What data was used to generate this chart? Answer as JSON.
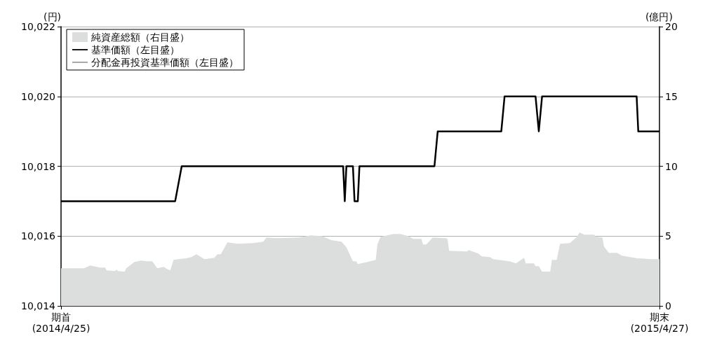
{
  "chart_data": {
    "type": "line",
    "ylabel": "(円)",
    "y2label": "(億円)",
    "xlim": [
      "2014-04-25",
      "2015-04-27"
    ],
    "xticks": [
      {
        "value": "2014-04-25",
        "label": "期首\n(2014/4/25)"
      },
      {
        "value": "2015-04-27",
        "label": "期末\n(2015/4/27)"
      }
    ],
    "ylim": [
      10014,
      10022
    ],
    "yticks": [
      {
        "value": 10014,
        "label": "10,014"
      },
      {
        "value": 10016,
        "label": "10,016"
      },
      {
        "value": 10018,
        "label": "10,018"
      },
      {
        "value": 10020,
        "label": "10,020"
      },
      {
        "value": 10022,
        "label": "10,022"
      }
    ],
    "y2lim": [
      0,
      20
    ],
    "y2ticks": [
      0,
      5,
      10,
      15,
      20
    ],
    "grid": "y",
    "legend": "top left",
    "marker": "none",
    "series": [
      {
        "name": "純資産総額（右目盛）",
        "type": "area",
        "axis": "y2",
        "color": "#dcdddd",
        "x": [
          "2014-04-25",
          "2014-05-09",
          "2014-05-13",
          "2014-05-19",
          "2014-05-22",
          "2014-05-23",
          "2014-05-28",
          "2014-05-29",
          "2014-05-30",
          "2014-06-03",
          "2014-06-04",
          "2014-06-09",
          "2014-06-13",
          "2014-06-17",
          "2014-06-20",
          "2014-06-23",
          "2014-06-27",
          "2014-06-29",
          "2014-07-01",
          "2014-07-03",
          "2014-07-10",
          "2014-07-14",
          "2014-07-17",
          "2014-07-22",
          "2014-07-28",
          "2014-07-30",
          "2014-08-01",
          "2014-08-05",
          "2014-08-11",
          "2014-08-21",
          "2014-08-27",
          "2014-08-29",
          "2014-09-04",
          "2014-09-18",
          "2014-09-25",
          "2014-10-02",
          "2014-10-08",
          "2014-10-14",
          "2014-10-17",
          "2014-10-21",
          "2014-10-23",
          "2014-10-24",
          "2014-10-30",
          "2014-11-04",
          "2014-11-05",
          "2014-11-07",
          "2014-11-15",
          "2014-11-19",
          "2014-11-24",
          "2014-11-27",
          "2014-12-02",
          "2014-12-03",
          "2014-12-05",
          "2014-12-09",
          "2014-12-17",
          "2014-12-18",
          "2014-12-19",
          "2014-12-30",
          "2014-12-31",
          "2015-01-06",
          "2015-01-08",
          "2015-01-13",
          "2015-01-15",
          "2015-01-25",
          "2015-01-29",
          "2015-02-03",
          "2015-02-04",
          "2015-02-09",
          "2015-02-10",
          "2015-02-12",
          "2015-02-14",
          "2015-02-19",
          "2015-02-20",
          "2015-02-23",
          "2015-02-25",
          "2015-03-03",
          "2015-03-04",
          "2015-03-07",
          "2015-03-09",
          "2015-03-12",
          "2015-03-18",
          "2015-03-19",
          "2015-03-23",
          "2015-03-24",
          "2015-03-27",
          "2015-04-01",
          "2015-04-04",
          "2015-04-09",
          "2015-04-14",
          "2015-04-16",
          "2015-04-22",
          "2015-04-27"
        ],
        "values": [
          2.7,
          2.7,
          2.9,
          2.75,
          2.75,
          2.55,
          2.5,
          2.6,
          2.5,
          2.45,
          2.7,
          3.15,
          3.25,
          3.2,
          3.2,
          2.7,
          2.8,
          2.65,
          2.55,
          3.3,
          3.4,
          3.5,
          3.7,
          3.35,
          3.45,
          3.7,
          3.7,
          4.55,
          4.45,
          4.5,
          4.6,
          4.9,
          4.85,
          4.9,
          5.05,
          5.0,
          4.7,
          4.6,
          4.2,
          3.2,
          3.2,
          3.0,
          3.15,
          3.3,
          4.4,
          4.95,
          5.15,
          5.15,
          5.0,
          4.8,
          4.8,
          4.4,
          4.4,
          4.9,
          4.85,
          4.8,
          3.95,
          3.9,
          4.0,
          3.75,
          3.55,
          3.5,
          3.35,
          3.2,
          3.05,
          3.45,
          3.05,
          3.05,
          2.85,
          2.85,
          2.45,
          2.45,
          3.3,
          3.3,
          4.45,
          4.5,
          4.6,
          4.9,
          5.25,
          5.1,
          5.1,
          4.95,
          4.9,
          4.25,
          3.8,
          3.8,
          3.6,
          3.5,
          3.4,
          3.4,
          3.35,
          3.35
        ]
      },
      {
        "name": "基準価額（左目盛）",
        "type": "line",
        "color": "#000000",
        "x": [
          "2014-04-25",
          "2014-07-04",
          "2014-07-08",
          "2014-10-15",
          "2014-10-16",
          "2014-10-17",
          "2014-10-21",
          "2014-10-22",
          "2014-10-24",
          "2014-10-25",
          "2014-12-10",
          "2014-12-12",
          "2015-01-20",
          "2015-01-22",
          "2015-02-10",
          "2015-02-12",
          "2015-02-14",
          "2015-04-13",
          "2015-04-14",
          "2015-04-27"
        ],
        "values": [
          10017,
          10017,
          10018,
          10018,
          10017,
          10018,
          10018,
          10017,
          10017,
          10018,
          10018,
          10019,
          10019,
          10020,
          10020,
          10019,
          10020,
          10020,
          10019,
          10019
        ]
      },
      {
        "name": "分配金再投資基準価額（左目盛）",
        "type": "line",
        "color": "#a0a0a0"
      }
    ]
  }
}
